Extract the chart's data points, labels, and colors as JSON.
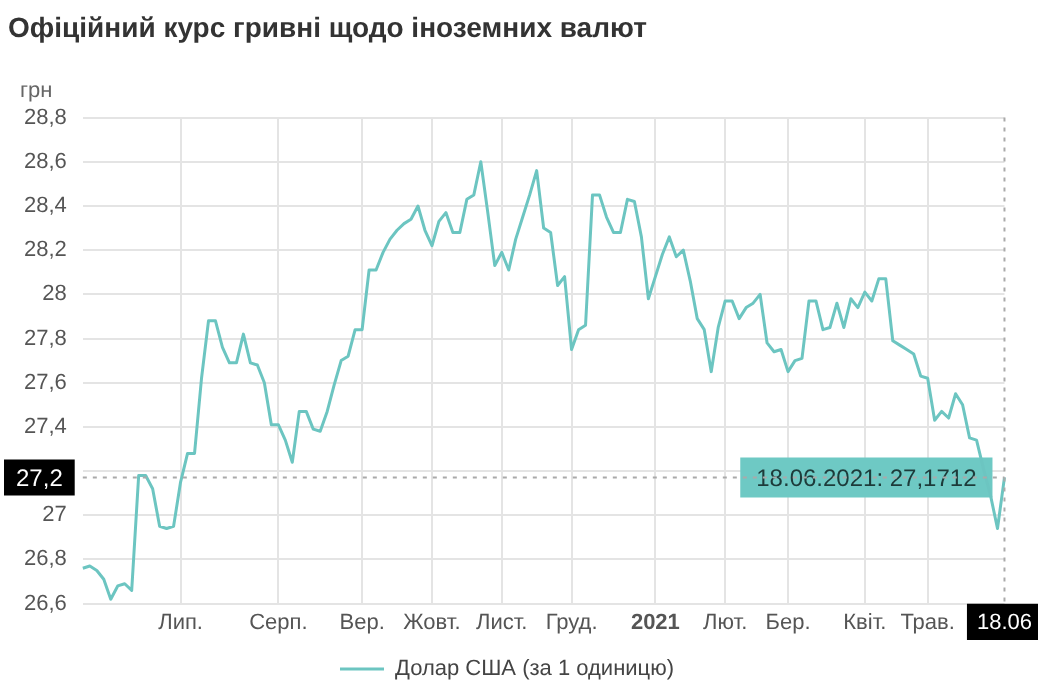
{
  "chart_data": {
    "type": "line",
    "title": "Офіційний курс гривні щодо іноземних валют",
    "ylabel": "грн",
    "categories": [
      null,
      null,
      null,
      null,
      null,
      null,
      null,
      null,
      null,
      null,
      null,
      null,
      null,
      null,
      "Лип.",
      null,
      null,
      null,
      null,
      null,
      null,
      null,
      null,
      null,
      null,
      null,
      null,
      null,
      "Серп.",
      null,
      null,
      null,
      null,
      null,
      null,
      null,
      null,
      null,
      null,
      null,
      "Вер.",
      null,
      null,
      null,
      null,
      null,
      null,
      null,
      null,
      null,
      "Жовт.",
      null,
      null,
      null,
      null,
      null,
      null,
      null,
      null,
      null,
      "Лист.",
      null,
      null,
      null,
      null,
      null,
      null,
      null,
      null,
      null,
      "Груд.",
      null,
      null,
      null,
      null,
      null,
      null,
      null,
      null,
      null,
      null,
      null,
      "2021",
      null,
      null,
      null,
      null,
      null,
      null,
      null,
      null,
      null,
      "Лют.",
      null,
      null,
      null,
      null,
      null,
      null,
      null,
      null,
      "Бер.",
      null,
      null,
      null,
      null,
      null,
      null,
      null,
      null,
      null,
      null,
      "Квіт.",
      null,
      null,
      null,
      null,
      null,
      null,
      null,
      null,
      "Трав.",
      null,
      null,
      null,
      null,
      null,
      null,
      null,
      null,
      null,
      null,
      "18.06"
    ],
    "series": [
      {
        "name": "Долар США (за 1 одиницю)",
        "color": "#6cc5c1",
        "values": [
          26.76,
          26.77,
          26.75,
          26.71,
          26.62,
          26.68,
          26.69,
          26.66,
          27.18,
          27.18,
          27.12,
          26.95,
          26.94,
          26.95,
          27.15,
          27.28,
          27.28,
          27.62,
          27.88,
          27.88,
          27.76,
          27.69,
          27.69,
          27.82,
          27.69,
          27.68,
          27.6,
          27.41,
          27.41,
          27.34,
          27.24,
          27.47,
          27.47,
          27.39,
          27.38,
          27.47,
          27.59,
          27.7,
          27.72,
          27.84,
          27.84,
          28.11,
          28.11,
          28.19,
          28.25,
          28.29,
          28.32,
          28.34,
          28.4,
          28.29,
          28.22,
          28.33,
          28.37,
          28.28,
          28.28,
          28.43,
          28.45,
          28.6,
          28.37,
          28.13,
          28.19,
          28.11,
          28.25,
          28.35,
          28.45,
          28.56,
          28.3,
          28.28,
          28.04,
          28.08,
          27.75,
          27.84,
          27.86,
          28.45,
          28.45,
          28.35,
          28.28,
          28.28,
          28.43,
          28.42,
          28.26,
          27.98,
          28.08,
          28.18,
          28.26,
          28.17,
          28.2,
          28.06,
          27.89,
          27.84,
          27.65,
          27.85,
          27.97,
          27.97,
          27.89,
          27.94,
          27.96,
          28.0,
          27.78,
          27.74,
          27.75,
          27.65,
          27.7,
          27.71,
          27.97,
          27.97,
          27.84,
          27.85,
          27.96,
          27.85,
          27.98,
          27.94,
          28.01,
          27.97,
          28.07,
          28.07,
          27.79,
          27.77,
          27.75,
          27.73,
          27.63,
          27.62,
          27.43,
          27.47,
          27.44,
          27.55,
          27.5,
          27.35,
          27.34,
          27.21,
          27.09,
          26.94,
          27.1712
        ]
      }
    ],
    "ylim": [
      26.6,
      28.8
    ],
    "yticks": [
      {
        "value": 26.6,
        "label": "26,6"
      },
      {
        "value": 26.8,
        "label": "26,8"
      },
      27,
      {
        "value": 27.2,
        "label": null
      },
      {
        "value": 27.4,
        "label": "27,4"
      },
      {
        "value": 27.6,
        "label": "27,6"
      },
      {
        "value": 27.8,
        "label": "27,8"
      },
      28,
      {
        "value": 28.2,
        "label": "28,2"
      },
      {
        "value": 28.4,
        "label": "28,4"
      },
      {
        "value": 28.6,
        "label": "28,6"
      },
      {
        "value": 28.8,
        "label": "28,8"
      }
    ],
    "ref_lines": [
      {
        "axis": "y",
        "value": 27.1712,
        "label": "27,2",
        "color": "#aaaaaa",
        "line_style": "dotted"
      },
      {
        "axis": "x",
        "value": "18.06",
        "color": "#aaaaaa",
        "line_style": "dotted"
      }
    ],
    "annotations": [
      {
        "text": "18.06.2021: 27,1712",
        "x": "18.06",
        "y": 27.1712
      }
    ],
    "grid": true,
    "legend": "bottom",
    "marker": "none",
    "line_style": "solid"
  }
}
